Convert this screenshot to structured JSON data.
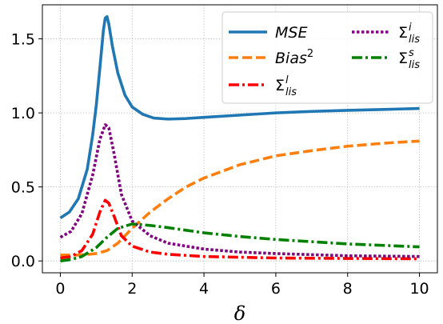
{
  "chart_data": {
    "type": "line",
    "xlabel": "δ",
    "ylabel": "",
    "xlim": [
      -0.5,
      10.5
    ],
    "ylim": [
      -0.08,
      1.73
    ],
    "xticks": [
      0,
      2,
      4,
      6,
      8,
      10
    ],
    "xtick_labels": [
      "0",
      "2",
      "4",
      "6",
      "8",
      "10"
    ],
    "yticks": [
      0.0,
      0.5,
      1.0,
      1.5
    ],
    "ytick_labels": [
      "0.0",
      "0.5",
      "1.0",
      "1.5"
    ],
    "grid": true,
    "legend_position": "top-right",
    "series": [
      {
        "name": "MSE",
        "label_main": "MSE",
        "label_sup": "",
        "label_sub": "",
        "label_italic": true,
        "color": "#1f77b4",
        "style": "solid",
        "points": [
          [
            0,
            0.29
          ],
          [
            0.25,
            0.33
          ],
          [
            0.5,
            0.42
          ],
          [
            0.75,
            0.62
          ],
          [
            0.9,
            0.85
          ],
          [
            1.0,
            1.05
          ],
          [
            1.1,
            1.3
          ],
          [
            1.2,
            1.56
          ],
          [
            1.25,
            1.64
          ],
          [
            1.3,
            1.65
          ],
          [
            1.35,
            1.6
          ],
          [
            1.45,
            1.45
          ],
          [
            1.6,
            1.27
          ],
          [
            1.8,
            1.12
          ],
          [
            2.0,
            1.04
          ],
          [
            2.3,
            0.99
          ],
          [
            2.6,
            0.965
          ],
          [
            3.0,
            0.958
          ],
          [
            3.5,
            0.962
          ],
          [
            4.0,
            0.97
          ],
          [
            5.0,
            0.985
          ],
          [
            6.0,
            1.0
          ],
          [
            7.0,
            1.01
          ],
          [
            8.0,
            1.017
          ],
          [
            9.0,
            1.023
          ],
          [
            10.0,
            1.03
          ]
        ]
      },
      {
        "name": "Bias²",
        "label_main": "Bias",
        "label_sup": "2",
        "label_sub": "",
        "label_italic": true,
        "color": "#ff7f0e",
        "style": "dashed",
        "points": [
          [
            0,
            0.04
          ],
          [
            0.5,
            0.04
          ],
          [
            0.8,
            0.045
          ],
          [
            1.0,
            0.05
          ],
          [
            1.3,
            0.07
          ],
          [
            1.6,
            0.12
          ],
          [
            2.0,
            0.22
          ],
          [
            2.5,
            0.33
          ],
          [
            3.0,
            0.42
          ],
          [
            3.5,
            0.5
          ],
          [
            4.0,
            0.56
          ],
          [
            5.0,
            0.65
          ],
          [
            6.0,
            0.71
          ],
          [
            7.0,
            0.745
          ],
          [
            8.0,
            0.775
          ],
          [
            9.0,
            0.795
          ],
          [
            10.0,
            0.81
          ]
        ]
      },
      {
        "name": "Σ_lis^l",
        "label_main": "Σ",
        "label_sup": "l",
        "label_sub": "lis",
        "label_italic": false,
        "color": "#ff0000",
        "style": "dashdot",
        "points": [
          [
            0,
            0.02
          ],
          [
            0.3,
            0.03
          ],
          [
            0.6,
            0.07
          ],
          [
            0.9,
            0.18
          ],
          [
            1.1,
            0.33
          ],
          [
            1.25,
            0.41
          ],
          [
            1.35,
            0.39
          ],
          [
            1.5,
            0.3
          ],
          [
            1.7,
            0.17
          ],
          [
            2.0,
            0.1
          ],
          [
            2.5,
            0.06
          ],
          [
            3.0,
            0.045
          ],
          [
            4.0,
            0.03
          ],
          [
            5.0,
            0.025
          ],
          [
            6.0,
            0.02
          ],
          [
            8.0,
            0.017
          ],
          [
            10.0,
            0.015
          ]
        ]
      },
      {
        "name": "Σ_lis^i",
        "label_main": "Σ",
        "label_sup": "i",
        "label_sub": "lis",
        "label_italic": false,
        "color": "#800080",
        "style": "dotted",
        "points": [
          [
            0,
            0.16
          ],
          [
            0.3,
            0.2
          ],
          [
            0.6,
            0.32
          ],
          [
            0.9,
            0.58
          ],
          [
            1.1,
            0.82
          ],
          [
            1.25,
            0.92
          ],
          [
            1.35,
            0.9
          ],
          [
            1.5,
            0.72
          ],
          [
            1.7,
            0.45
          ],
          [
            2.0,
            0.27
          ],
          [
            2.5,
            0.17
          ],
          [
            3.0,
            0.12
          ],
          [
            4.0,
            0.08
          ],
          [
            5.0,
            0.06
          ],
          [
            6.0,
            0.05
          ],
          [
            8.0,
            0.035
          ],
          [
            10.0,
            0.03
          ]
        ]
      },
      {
        "name": "Σ_lis^s",
        "label_main": "Σ",
        "label_sup": "s",
        "label_sub": "lis",
        "label_italic": false,
        "color": "#008000",
        "style": "dashdot",
        "points": [
          [
            0,
            0.0
          ],
          [
            0.3,
            0.01
          ],
          [
            0.6,
            0.03
          ],
          [
            1.0,
            0.09
          ],
          [
            1.3,
            0.16
          ],
          [
            1.6,
            0.22
          ],
          [
            2.0,
            0.25
          ],
          [
            2.5,
            0.24
          ],
          [
            3.0,
            0.225
          ],
          [
            4.0,
            0.19
          ],
          [
            5.0,
            0.165
          ],
          [
            6.0,
            0.145
          ],
          [
            7.0,
            0.13
          ],
          [
            8.0,
            0.115
          ],
          [
            9.0,
            0.105
          ],
          [
            10.0,
            0.095
          ]
        ]
      }
    ]
  }
}
